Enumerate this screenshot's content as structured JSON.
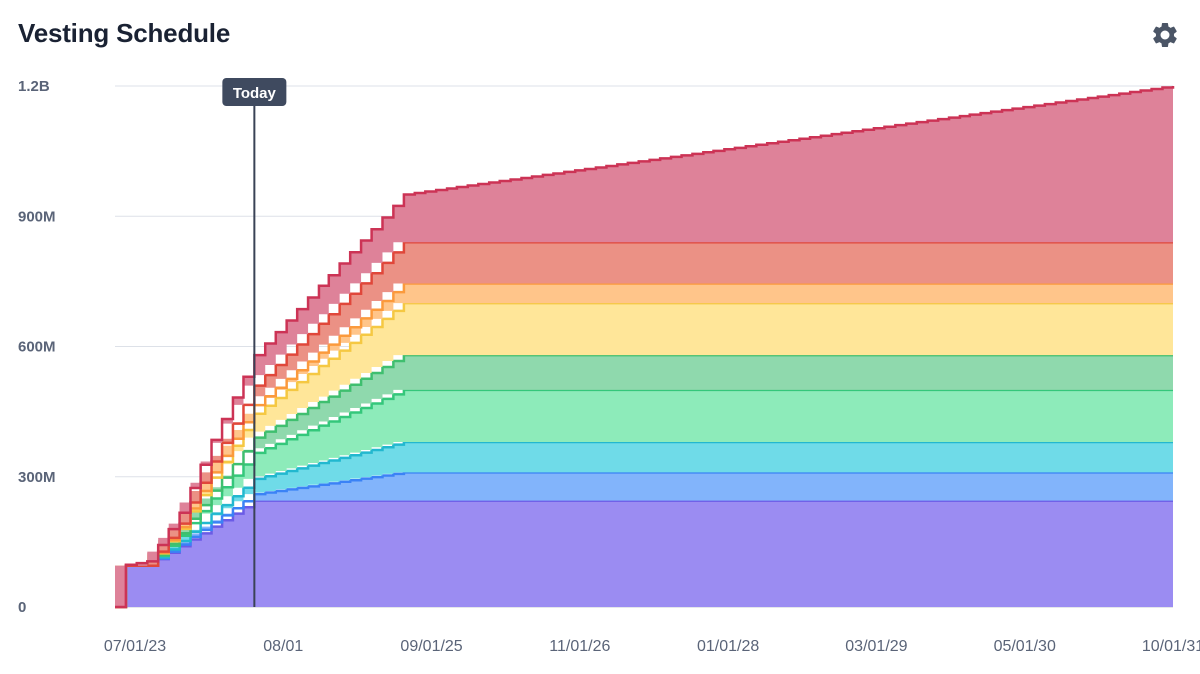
{
  "header": {
    "title": "Vesting Schedule",
    "settings_icon": "gear-icon"
  },
  "chart_data": {
    "type": "area",
    "stacked": true,
    "step": true,
    "title": "Vesting Schedule",
    "xlabel": "",
    "ylabel": "",
    "x_ticks": [
      "07/01/23",
      "08/01",
      "09/01/25",
      "11/01/26",
      "01/01/28",
      "03/01/29",
      "05/01/30",
      "10/01/31"
    ],
    "y_ticks": [
      "0",
      "300M",
      "600M",
      "900M",
      "1.2B"
    ],
    "ylim": [
      0,
      1200000000
    ],
    "xlim": [
      "2023-07-01",
      "2031-10-01"
    ],
    "grid": "horizontal",
    "today_marker": {
      "label": "Today",
      "date": "2024-08-01"
    },
    "series": [
      {
        "color": "#9b8cf2",
        "line": "#6b5be6",
        "points": [
          [
            "2023-07-01",
            0
          ],
          [
            "2023-07-15",
            95000000
          ],
          [
            "2023-10-01",
            95000000
          ],
          [
            "2024-01-01",
            140000000
          ],
          [
            "2024-04-01",
            185000000
          ],
          [
            "2024-08-01",
            245000000
          ],
          [
            "2025-10-01",
            245000000
          ],
          [
            "2031-10-01",
            245000000
          ]
        ]
      },
      {
        "color": "#82b4fb",
        "line": "#3b82f6",
        "points": [
          [
            "2023-07-01",
            0
          ],
          [
            "2023-07-15",
            0
          ],
          [
            "2023-10-01",
            0
          ],
          [
            "2024-01-01",
            4000000
          ],
          [
            "2024-04-01",
            10000000
          ],
          [
            "2024-08-01",
            15000000
          ],
          [
            "2025-10-01",
            65000000
          ],
          [
            "2031-10-01",
            65000000
          ]
        ]
      },
      {
        "color": "#6fdbe8",
        "line": "#22b8cf",
        "points": [
          [
            "2023-07-01",
            0
          ],
          [
            "2023-07-15",
            0
          ],
          [
            "2023-10-01",
            0
          ],
          [
            "2024-01-01",
            8000000
          ],
          [
            "2024-04-01",
            20000000
          ],
          [
            "2024-08-01",
            35000000
          ],
          [
            "2025-10-01",
            70000000
          ],
          [
            "2031-10-01",
            70000000
          ]
        ]
      },
      {
        "color": "#8debba",
        "line": "#34c77b",
        "points": [
          [
            "2023-07-01",
            0
          ],
          [
            "2023-07-15",
            0
          ],
          [
            "2023-10-01",
            0
          ],
          [
            "2024-01-01",
            12000000
          ],
          [
            "2024-04-01",
            35000000
          ],
          [
            "2024-08-01",
            60000000
          ],
          [
            "2025-10-01",
            120000000
          ],
          [
            "2031-10-01",
            120000000
          ]
        ]
      },
      {
        "color": "#8fd9ad",
        "line": "#3fbf6f",
        "points": [
          [
            "2023-07-01",
            0
          ],
          [
            "2023-07-15",
            0
          ],
          [
            "2023-10-01",
            0
          ],
          [
            "2024-01-01",
            6000000
          ],
          [
            "2024-04-01",
            18000000
          ],
          [
            "2024-08-01",
            35000000
          ],
          [
            "2025-10-01",
            80000000
          ],
          [
            "2031-10-01",
            80000000
          ]
        ]
      },
      {
        "color": "#ffe699",
        "line": "#f5c842",
        "points": [
          [
            "2023-07-01",
            0
          ],
          [
            "2023-07-15",
            0
          ],
          [
            "2023-10-01",
            0
          ],
          [
            "2024-01-01",
            10000000
          ],
          [
            "2024-04-01",
            30000000
          ],
          [
            "2024-08-01",
            55000000
          ],
          [
            "2025-10-01",
            120000000
          ],
          [
            "2031-10-01",
            120000000
          ]
        ]
      },
      {
        "color": "#ffc58a",
        "line": "#fb9a3c",
        "points": [
          [
            "2023-07-01",
            0
          ],
          [
            "2023-07-15",
            0
          ],
          [
            "2023-10-01",
            0
          ],
          [
            "2024-01-01",
            4000000
          ],
          [
            "2024-04-01",
            12000000
          ],
          [
            "2024-08-01",
            20000000
          ],
          [
            "2025-10-01",
            45000000
          ],
          [
            "2031-10-01",
            45000000
          ]
        ]
      },
      {
        "color": "#eb9185",
        "line": "#e0473a",
        "points": [
          [
            "2023-07-01",
            0
          ],
          [
            "2023-07-15",
            0
          ],
          [
            "2023-10-01",
            0
          ],
          [
            "2024-01-01",
            8000000
          ],
          [
            "2024-04-01",
            25000000
          ],
          [
            "2024-08-01",
            45000000
          ],
          [
            "2025-10-01",
            95000000
          ],
          [
            "2031-10-01",
            95000000
          ]
        ]
      },
      {
        "color": "#de8299",
        "line": "#cc3355",
        "points": [
          [
            "2023-07-01",
            0
          ],
          [
            "2023-07-15",
            0
          ],
          [
            "2023-10-01",
            10000000
          ],
          [
            "2024-01-01",
            25000000
          ],
          [
            "2024-04-01",
            50000000
          ],
          [
            "2024-08-01",
            70000000
          ],
          [
            "2025-10-01",
            110000000
          ],
          [
            "2031-10-01",
            360000000
          ]
        ]
      }
    ]
  }
}
